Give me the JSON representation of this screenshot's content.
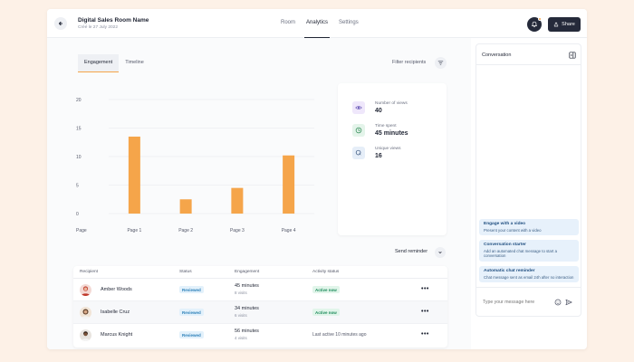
{
  "header": {
    "title": "Digital Sales Room Name",
    "subtitle": "Créé le 27 July 2022",
    "tabs": [
      {
        "label": "Room",
        "active": false
      },
      {
        "label": "Analytics",
        "active": true
      },
      {
        "label": "Settings",
        "active": false
      }
    ],
    "share_label": "Share"
  },
  "subtabs": [
    {
      "label": "Engagement",
      "active": true
    },
    {
      "label": "Timeline",
      "active": false
    }
  ],
  "filter_label": "Filter recipients",
  "chart_data": {
    "type": "bar",
    "categories": [
      "Page 1",
      "Page 2",
      "Page 3",
      "Page 4"
    ],
    "x_axis_label": "Page",
    "values": [
      13.5,
      2.5,
      4.5,
      10.2
    ],
    "ylim": [
      0,
      20
    ],
    "yticks": [
      0,
      5,
      10,
      15,
      20
    ],
    "grid": true,
    "color": "#f5a54a"
  },
  "stats": [
    {
      "icon": "eye-icon",
      "label": "Number of views",
      "value": "40",
      "bg": "#efe7fb",
      "color": "#5a4ab0"
    },
    {
      "icon": "clock-icon",
      "label": "Time spent",
      "value": "45 minutes",
      "bg": "#e4f4ea",
      "color": "#2f8a55"
    },
    {
      "icon": "cursor-icon",
      "label": "Unique views",
      "value": "16",
      "bg": "#e6eef8",
      "color": "#2c4a74"
    }
  ],
  "send_reminder_label": "Send reminder",
  "table": {
    "headers": [
      "Recipient",
      "Status",
      "Engagement",
      "Activity status"
    ],
    "rows": [
      {
        "name": "Amber Woods",
        "status": "Reviewed",
        "engagement": "45 minutes",
        "visits": "8 visits",
        "activity": "Active now",
        "activity_pill": true,
        "more": "•••"
      },
      {
        "name": "Isabelle Cruz",
        "status": "Reviewed",
        "engagement": "34 minutes",
        "visits": "6 visits",
        "activity": "Active now",
        "activity_pill": true,
        "more": "•••"
      },
      {
        "name": "Marcus Knight",
        "status": "Reviewed",
        "engagement": "56 minutes",
        "visits": "4 visits",
        "activity": "Last active 10 minutes ago",
        "activity_pill": false,
        "more": "•••"
      }
    ]
  },
  "conversation": {
    "title": "Conversation",
    "suggestions": [
      {
        "title": "Engage with a video",
        "desc": "Present your content with a video"
      },
      {
        "title": "Conversation starter",
        "desc": "Add an automated chat message to start a conversation"
      },
      {
        "title": "Automatic chat reminder",
        "desc": "Chat message sent as email 24h after no interaction"
      }
    ],
    "input_placeholder": "Type your message here"
  },
  "colors": {
    "accent": "#f5a54a",
    "dark": "#252a3a",
    "background": "#fdf1e7"
  }
}
